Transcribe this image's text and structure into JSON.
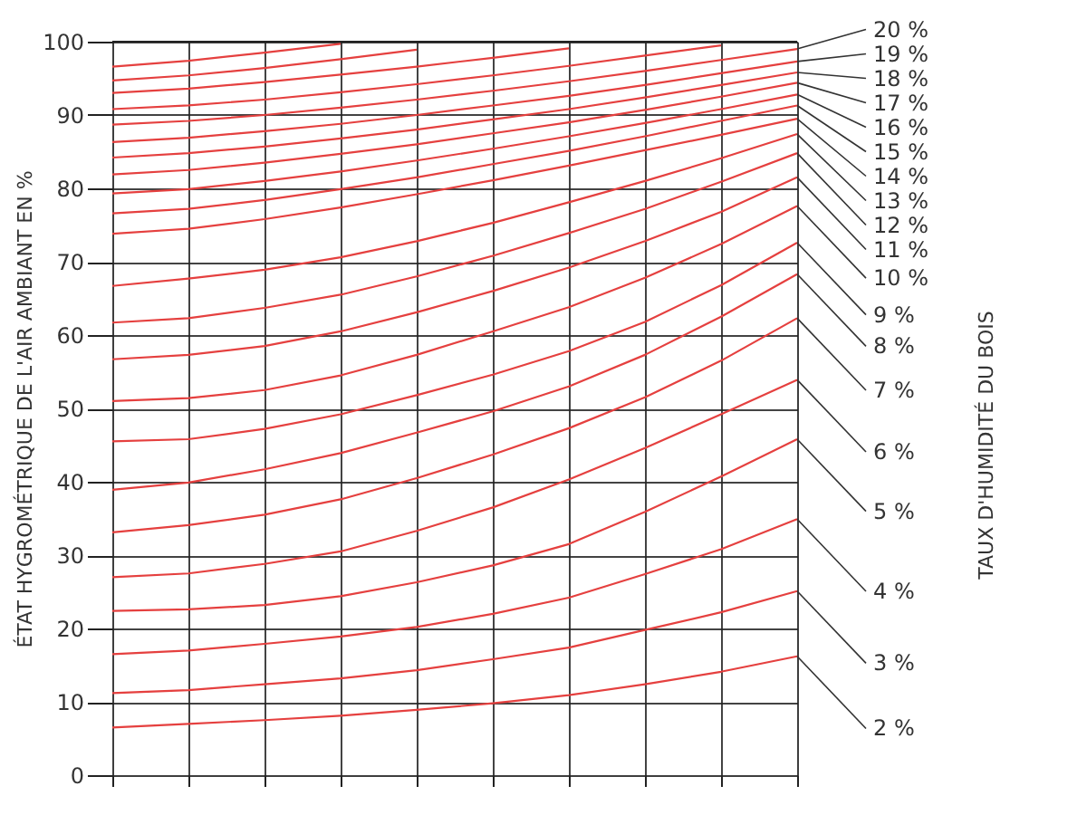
{
  "chart_data": {
    "type": "line",
    "ylabel": "ÉTAT HYGROMÉTRIQUE DE L'AIR AMBIANT EN %",
    "legend_title": "TAUX D'HUMIDITÉ DU BOIS",
    "categories": [
      null,
      null,
      null,
      null,
      null,
      null,
      null,
      null,
      null,
      null
    ],
    "ylim": [
      0,
      100
    ],
    "yticks": [
      0,
      10,
      20,
      30,
      40,
      50,
      60,
      70,
      80,
      90,
      100
    ],
    "grid": true,
    "tick_labels": "y",
    "series": [
      {
        "name": "2 %",
        "color": "#e5403f",
        "values": [
          6.5,
          7.0,
          7.5,
          8.1,
          8.9,
          9.8,
          10.9,
          12.4,
          14.1,
          16.2
        ]
      },
      {
        "name": "3 %",
        "color": "#e5403f",
        "values": [
          11.2,
          11.6,
          12.4,
          13.2,
          14.3,
          15.8,
          17.4,
          19.8,
          22.2,
          25.1
        ]
      },
      {
        "name": "4 %",
        "color": "#e5403f",
        "values": [
          16.5,
          17.0,
          17.9,
          18.9,
          20.2,
          22.0,
          24.2,
          27.4,
          30.8,
          34.9
        ]
      },
      {
        "name": "5 %",
        "color": "#e5403f",
        "values": [
          22.4,
          22.6,
          23.2,
          24.4,
          26.3,
          28.6,
          31.5,
          35.9,
          40.7,
          45.8
        ]
      },
      {
        "name": "6 %",
        "color": "#e5403f",
        "values": [
          27.0,
          27.5,
          28.8,
          30.5,
          33.3,
          36.5,
          40.3,
          44.6,
          49.2,
          53.9
        ]
      },
      {
        "name": "7 %",
        "color": "#e5403f",
        "values": [
          33.1,
          34.1,
          35.5,
          37.6,
          40.5,
          43.7,
          47.3,
          51.5,
          56.5,
          62.3
        ]
      },
      {
        "name": "8 %",
        "color": "#e5403f",
        "values": [
          38.9,
          39.9,
          41.7,
          43.9,
          46.7,
          49.6,
          53.0,
          57.3,
          62.5,
          68.3
        ]
      },
      {
        "name": "9 %",
        "color": "#e5403f",
        "values": [
          45.5,
          45.8,
          47.2,
          49.2,
          51.8,
          54.6,
          57.8,
          61.8,
          66.8,
          72.6
        ]
      },
      {
        "name": "10 %",
        "color": "#e5403f",
        "values": [
          51.0,
          51.4,
          52.5,
          54.5,
          57.3,
          60.5,
          63.8,
          67.8,
          72.4,
          77.6
        ]
      },
      {
        "name": "11 %",
        "color": "#e5403f",
        "values": [
          56.7,
          57.3,
          58.5,
          60.5,
          63.1,
          66.0,
          69.2,
          72.8,
          76.8,
          81.5
        ]
      },
      {
        "name": "12 %",
        "color": "#e5403f",
        "values": [
          61.7,
          62.3,
          63.7,
          65.5,
          68.0,
          70.8,
          73.9,
          77.2,
          80.9,
          84.8
        ]
      },
      {
        "name": "13 %",
        "color": "#e5403f",
        "values": [
          66.7,
          67.7,
          68.9,
          70.6,
          72.8,
          75.3,
          78.1,
          81.0,
          84.1,
          87.4
        ]
      },
      {
        "name": "14 %",
        "color": "#e5403f",
        "values": [
          73.8,
          74.5,
          75.8,
          77.4,
          79.2,
          81.1,
          83.1,
          85.2,
          87.3,
          89.5
        ]
      },
      {
        "name": "15 %",
        "color": "#e5403f",
        "values": [
          76.6,
          77.2,
          78.4,
          79.9,
          81.5,
          83.3,
          85.1,
          87.1,
          89.2,
          91.3
        ]
      },
      {
        "name": "16 %",
        "color": "#e5403f",
        "values": [
          79.3,
          79.9,
          81.0,
          82.3,
          83.8,
          85.4,
          87.1,
          88.9,
          90.8,
          92.8
        ]
      },
      {
        "name": "17 %",
        "color": "#e5403f",
        "values": [
          81.9,
          82.5,
          83.5,
          84.7,
          86.0,
          87.5,
          89.0,
          90.7,
          92.5,
          94.4
        ]
      },
      {
        "name": "18 %",
        "color": "#e5403f",
        "values": [
          84.2,
          84.8,
          85.7,
          86.8,
          88.0,
          89.4,
          90.8,
          92.4,
          94.1,
          95.8
        ]
      },
      {
        "name": "19 %",
        "color": "#e5403f",
        "values": [
          86.3,
          86.9,
          87.8,
          88.8,
          90.0,
          91.3,
          92.6,
          94.1,
          95.7,
          97.3
        ]
      },
      {
        "name": "20 %",
        "color": "#e5403f",
        "values": [
          88.7,
          89.2,
          90.0,
          91.0,
          92.1,
          93.3,
          94.6,
          96.0,
          97.5,
          99.0
        ]
      },
      {
        "color": "#e5403f",
        "values": [
          90.8,
          91.3,
          92.1,
          93.1,
          94.2,
          95.4,
          96.7,
          98.1,
          99.5,
          null
        ]
      },
      {
        "color": "#e5403f",
        "values": [
          93.0,
          93.6,
          94.5,
          95.5,
          96.6,
          97.8,
          99.1,
          null,
          null,
          null
        ]
      },
      {
        "color": "#e5403f",
        "values": [
          94.7,
          95.4,
          96.4,
          97.6,
          98.9,
          null,
          null,
          null,
          null,
          null
        ]
      },
      {
        "color": "#e5403f",
        "values": [
          96.6,
          97.4,
          98.5,
          99.7,
          null,
          null,
          null,
          null,
          null,
          null
        ]
      }
    ]
  }
}
